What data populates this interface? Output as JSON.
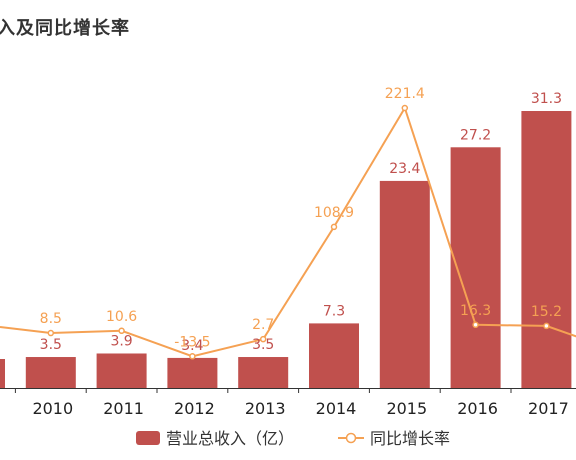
{
  "title": "入及同比增长率",
  "chart_data": {
    "type": "bar",
    "title": "入及同比增长率",
    "categories": [
      "9",
      "2010",
      "2011",
      "2012",
      "2013",
      "2014",
      "2015",
      "2016",
      "2017"
    ],
    "series": [
      {
        "name": "营业总收入（亿）",
        "type": "bar",
        "color": "#c0504d",
        "values": [
          null,
          3.5,
          3.9,
          3.4,
          3.5,
          7.3,
          23.4,
          27.2,
          31.3
        ],
        "labels": [
          "",
          "3.5",
          "3.9",
          "3.4",
          "3.5",
          "7.3",
          "23.4",
          "27.2",
          "31.3"
        ]
      },
      {
        "name": "同比增长率",
        "type": "line",
        "color": "#f5a153",
        "values": [
          null,
          8.5,
          10.6,
          -13.5,
          2.7,
          108.9,
          221.4,
          16.3,
          15.2
        ],
        "labels": [
          "",
          "8.5",
          "10.6",
          "-13.5",
          "2.7",
          "108.9",
          "221.4",
          "16.3",
          "15.2"
        ]
      }
    ],
    "legend": "bottom-center",
    "grid": false
  }
}
